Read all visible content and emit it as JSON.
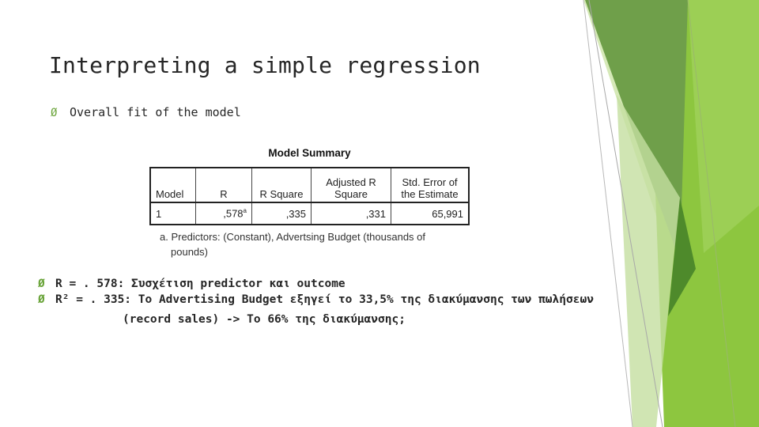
{
  "slide": {
    "title": "Interpreting a simple regression",
    "bullet_1": "Overall fit of the model",
    "bullet_2": "R = . 578: Συσχέτιση predictor και outcome",
    "bullet_3_line1": "R² = . 335: Το Advertising Budget εξηγεί το 33,5% της διακύμανσης των πωλήσεων",
    "bullet_3_line2": "(record sales) -> Το 66% της διακύμανσης;",
    "bullet_glyph": "Ø",
    "accent_color": "#8dc63f"
  },
  "model_summary": {
    "title": "Model Summary",
    "columns": [
      "Model",
      "R",
      "R Square",
      "Adjusted R Square",
      "Std. Error of the Estimate"
    ],
    "rows": [
      {
        "model": "1",
        "r": ",578",
        "r_sup": "a",
        "r_square": ",335",
        "adj_r_square": ",331",
        "std_error": "65,991"
      }
    ],
    "footnote_line1": "a. Predictors: (Constant), Advertsing Budget (thousands of",
    "footnote_line2": "pounds)"
  }
}
